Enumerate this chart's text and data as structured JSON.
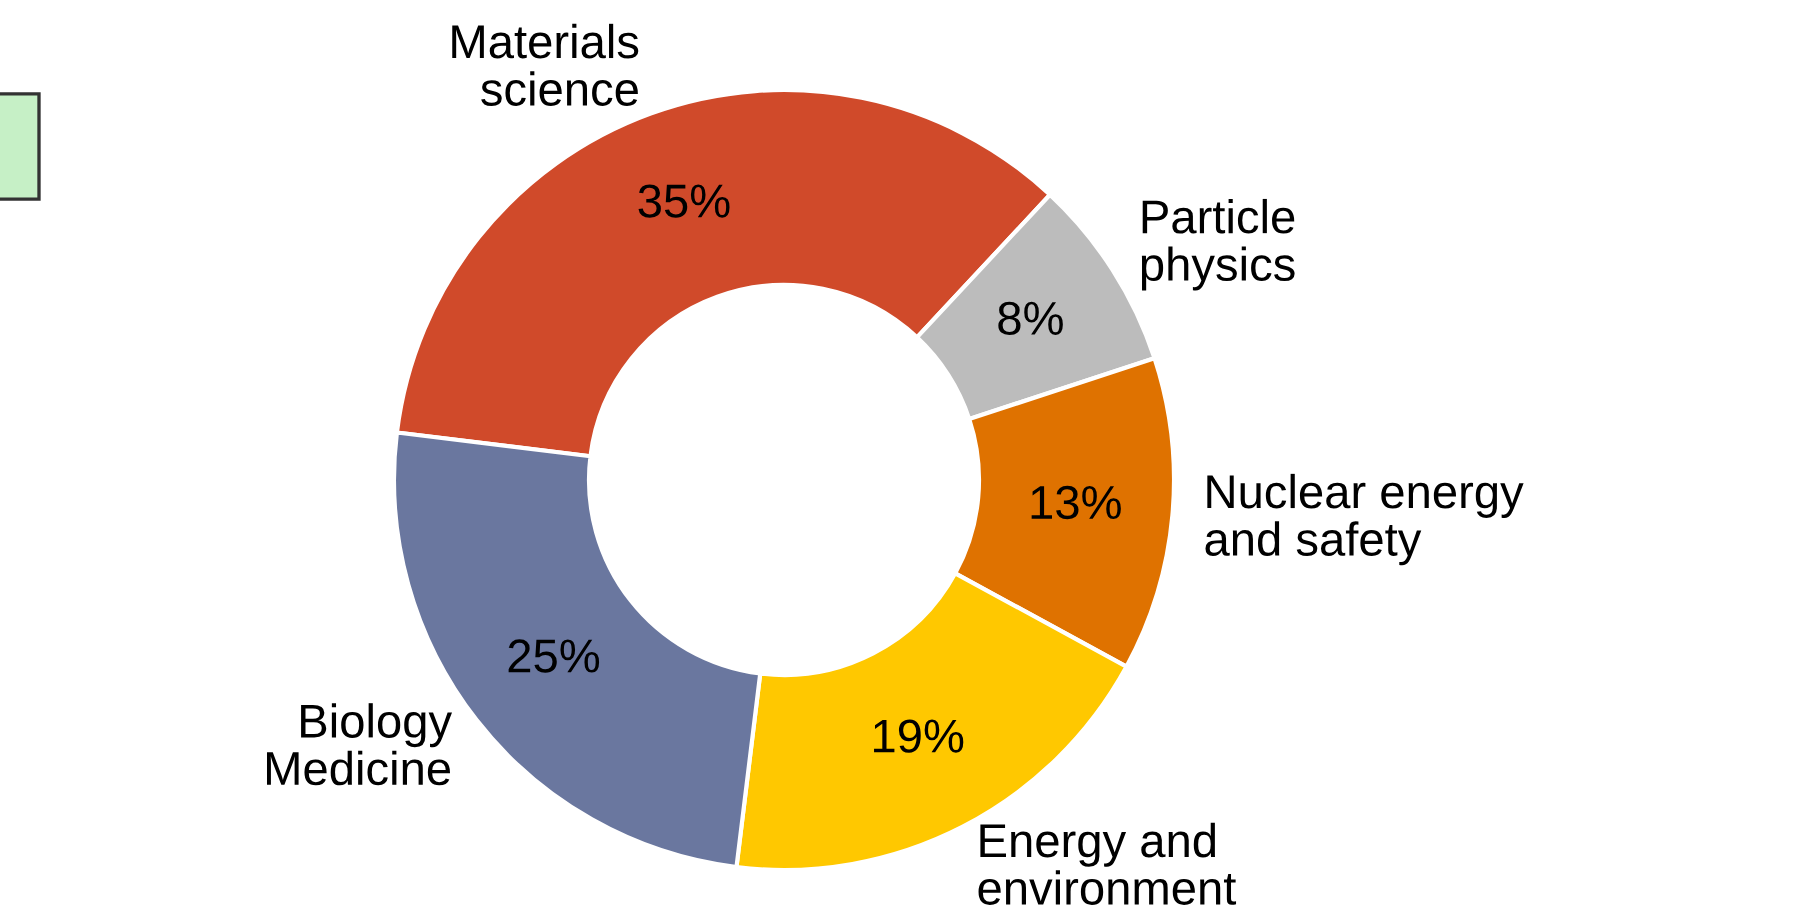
{
  "chart_data": {
    "type": "donut",
    "categories": [
      "Materials\nscience",
      "Particle\nphysics",
      "Nuclear energy\nand safety",
      "Energy and\nenvironment",
      "Biology\nMedicine"
    ],
    "values": [
      35,
      8,
      13,
      19,
      25
    ],
    "value_labels": [
      "35%",
      "8%",
      "13%",
      "19%",
      "25%"
    ],
    "colors": [
      "#d04a2a",
      "#bcbcbc",
      "#df7200",
      "#ffc800",
      "#6a779f"
    ],
    "legend": false
  }
}
